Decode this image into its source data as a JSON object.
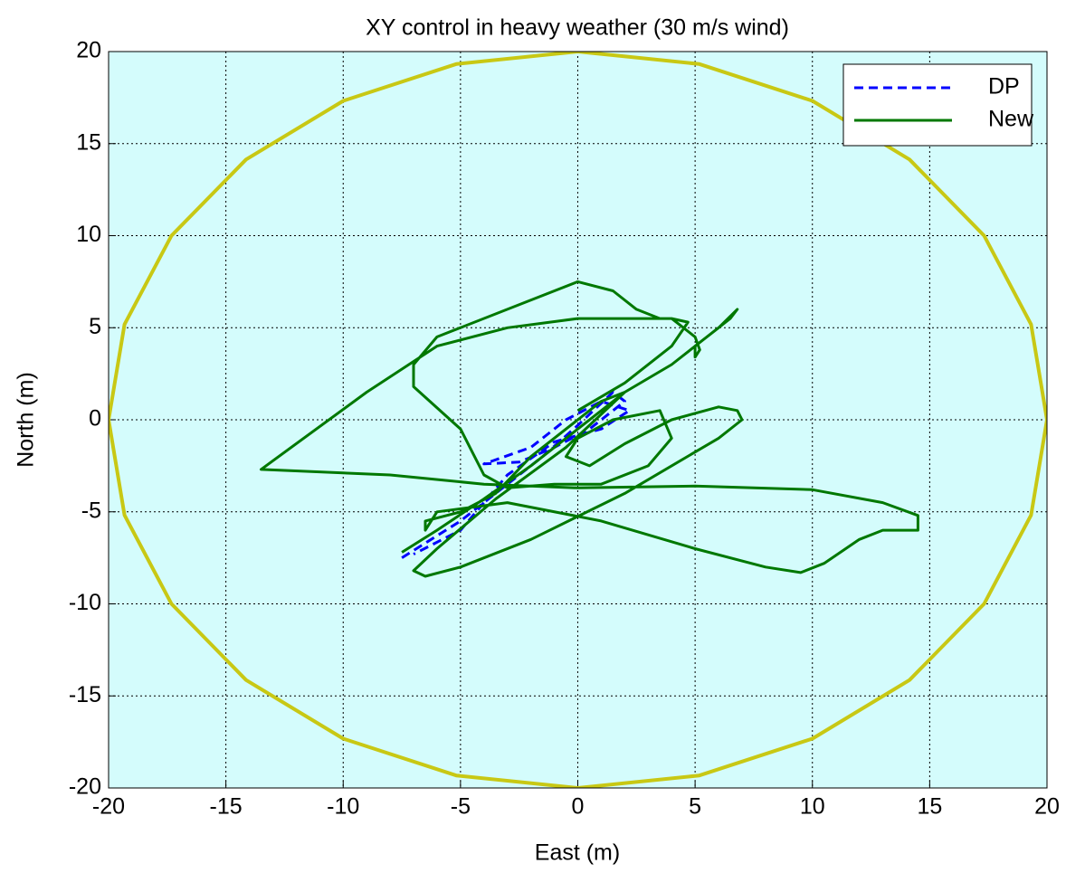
{
  "chart_data": {
    "type": "line",
    "title": "XY control in heavy weather (30 m/s wind)",
    "x_label": "East (m)",
    "y_label": "North (m)",
    "xlim": [
      -20,
      20
    ],
    "ylim": [
      -20,
      20
    ],
    "xticks": [
      -20,
      -15,
      -10,
      -5,
      0,
      5,
      10,
      15,
      20
    ],
    "yticks": [
      -20,
      -15,
      -10,
      -5,
      0,
      5,
      10,
      15,
      20
    ],
    "grid": true,
    "background": "#d4fcfc",
    "legend": "upper-right",
    "series": [
      {
        "color": "#c8c814",
        "width": 4,
        "dash": false,
        "x": [
          20,
          19.32,
          17.32,
          14.14,
          10,
          5.18,
          0,
          -5.18,
          -10,
          -14.14,
          -17.32,
          -19.32,
          -20,
          -19.32,
          -17.32,
          -14.14,
          -10,
          -5.18,
          0,
          5.18,
          10,
          14.14,
          17.32,
          19.32,
          20
        ],
        "y": [
          0,
          5.18,
          10,
          14.14,
          17.32,
          19.32,
          20,
          19.32,
          17.32,
          14.14,
          10,
          5.18,
          0,
          -5.18,
          -10,
          -14.14,
          -17.32,
          -19.32,
          -20,
          -19.32,
          -17.32,
          -14.14,
          -10,
          -5.18,
          0
        ]
      },
      {
        "name": "DP",
        "color": "#0000ff",
        "width": 3,
        "dash": true,
        "x": [
          -7.5,
          -5,
          -3,
          -1.5,
          0,
          1.5,
          2,
          0.5,
          -1,
          -2.5,
          -4,
          -2,
          -0.5,
          1,
          2.2,
          1,
          -1,
          -3,
          -5,
          -7
        ],
        "y": [
          -7.5,
          -5.5,
          -3.5,
          -2,
          -0.3,
          1.5,
          1,
          -0.5,
          -1.5,
          -2.3,
          -2.4,
          -1.5,
          0,
          1,
          0.5,
          -0.5,
          -1.2,
          -3,
          -6,
          -7.3
        ]
      },
      {
        "name": "New",
        "color": "#007800",
        "width": 3,
        "dash": false,
        "x": [
          -7.5,
          -6,
          -4,
          -2,
          0,
          2,
          4,
          6.5,
          6.8,
          6,
          5,
          5,
          5.2,
          5,
          4,
          1.5,
          0,
          -3,
          -6,
          -9,
          -13.5,
          -8,
          -4,
          0,
          5,
          10,
          13,
          14.5,
          14.5,
          13,
          12,
          10.5,
          9.5,
          8,
          5,
          1,
          -3,
          -6,
          -6.5,
          -6.5,
          -5,
          -3.5,
          -2,
          0,
          1,
          2,
          -0.5,
          -3.5,
          -6,
          -7,
          -6.5,
          -5,
          -2,
          2,
          6,
          7,
          6.8,
          6,
          4,
          2,
          0.5,
          -0.5,
          0,
          1.5,
          3.5,
          4,
          3,
          1,
          -1,
          -3,
          -4,
          -5,
          -7,
          -7,
          -6,
          -3,
          0,
          1.5,
          2.5,
          3.5,
          4,
          4.7,
          4,
          2,
          0
        ],
        "y": [
          -7.2,
          -6,
          -4.3,
          -2.5,
          -0.5,
          1.5,
          3,
          5.5,
          6,
          5,
          4,
          3.4,
          3.8,
          4.5,
          5.5,
          5.5,
          5.5,
          5,
          4,
          1.5,
          -2.7,
          -3,
          -3.5,
          -3.7,
          -3.6,
          -3.8,
          -4.5,
          -5.2,
          -6,
          -6,
          -6.5,
          -7.8,
          -8.3,
          -8,
          -7,
          -5.5,
          -4.5,
          -5,
          -6,
          -5.5,
          -5,
          -4,
          -2,
          0,
          1,
          1.5,
          -1.5,
          -4.3,
          -7,
          -8.2,
          -8.5,
          -8,
          -6.5,
          -4,
          -1,
          0,
          0.5,
          0.7,
          0,
          -1.3,
          -2.5,
          -2,
          -1,
          0,
          0.5,
          -1,
          -2.5,
          -3.5,
          -3.5,
          -3.7,
          -3,
          -0.5,
          1.8,
          3,
          4.5,
          6,
          7.5,
          7,
          6,
          5.5,
          5.5,
          5.3,
          4,
          2,
          0.5
        ]
      }
    ]
  }
}
